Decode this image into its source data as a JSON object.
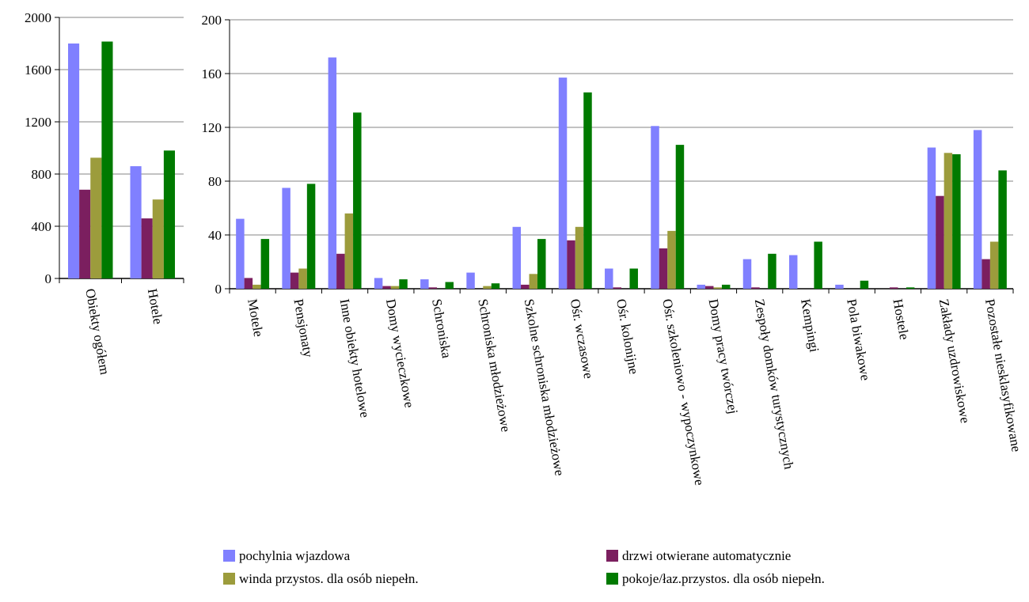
{
  "colors": {
    "pochylnia": "#8080FF",
    "drzwi": "#7B1F5F",
    "winda": "#9C9C3C",
    "pokoje": "#007A00",
    "grid": "#868686",
    "axis": "#000000"
  },
  "chart_data": [
    {
      "type": "bar",
      "title": "",
      "xlabel": "",
      "ylabel": "",
      "ylim": [
        0,
        2000
      ],
      "yticks": [
        0,
        400,
        800,
        1200,
        1600,
        2000
      ],
      "grid": true,
      "categories": [
        "Obiekty   ogółem",
        "Hotele"
      ],
      "series": [
        {
          "name": "pochylnia wjazdowa",
          "values": [
            1800,
            860
          ]
        },
        {
          "name": "drzwi otwierane automatycznie",
          "values": [
            680,
            460
          ]
        },
        {
          "name": "winda przystos. dla osób niepełn.",
          "values": [
            925,
            605
          ]
        },
        {
          "name": "pokoje/łaz.przystos. dla osób niepełn.",
          "values": [
            1815,
            980
          ]
        }
      ]
    },
    {
      "type": "bar",
      "title": "",
      "xlabel": "",
      "ylabel": "",
      "ylim": [
        0,
        200
      ],
      "yticks": [
        0,
        40,
        80,
        120,
        160,
        200
      ],
      "grid": true,
      "categories": [
        "Motele",
        "Pensjonaty",
        "Inne obiekty hotelowe",
        "Domy wycieczkowe",
        "Schroniska",
        "Schroniska młodzieżowe",
        "Szkolne schroniska młodzieżowe",
        "Ośr. wczasowe",
        "Ośr. kolonijne",
        "Ośr. szkoleniowo - wypoczynkowe",
        "Domy pracy twórczej",
        "Zespoły domków turystycznych",
        "Kempingi",
        "Pola biwakowe",
        "Hostele",
        "Zakłady uzdrowiskowe",
        "Pozostałe niesklasyfikowane"
      ],
      "series": [
        {
          "name": "pochylnia wjazdowa",
          "values": [
            52,
            75,
            172,
            8,
            7,
            12,
            46,
            157,
            15,
            121,
            3,
            22,
            25,
            3,
            0,
            105,
            118
          ]
        },
        {
          "name": "drzwi otwierane automatycznie",
          "values": [
            8,
            12,
            26,
            2,
            1,
            0,
            3,
            36,
            1,
            30,
            2,
            1,
            0,
            0,
            1,
            69,
            22
          ]
        },
        {
          "name": "winda przystos. dla osób niepełn.",
          "values": [
            3,
            15,
            56,
            2,
            0,
            2,
            11,
            46,
            0,
            43,
            1,
            0,
            0,
            0,
            0,
            101,
            35
          ]
        },
        {
          "name": "pokoje/łaz.przystos. dla osób niepełn.",
          "values": [
            37,
            78,
            131,
            7,
            5,
            4,
            37,
            146,
            15,
            107,
            3,
            26,
            35,
            6,
            1,
            100,
            88
          ]
        }
      ]
    }
  ],
  "legend": {
    "placement": "bottom",
    "items": [
      {
        "label": "pochylnia wjazdowa",
        "color_key": "pochylnia"
      },
      {
        "label": "drzwi otwierane automatycznie",
        "color_key": "drzwi"
      },
      {
        "label": "winda przystos. dla osób niepełn.",
        "color_key": "winda"
      },
      {
        "label": "pokoje/łaz.przystos. dla osób niepełn.",
        "color_key": "pokoje"
      }
    ]
  }
}
